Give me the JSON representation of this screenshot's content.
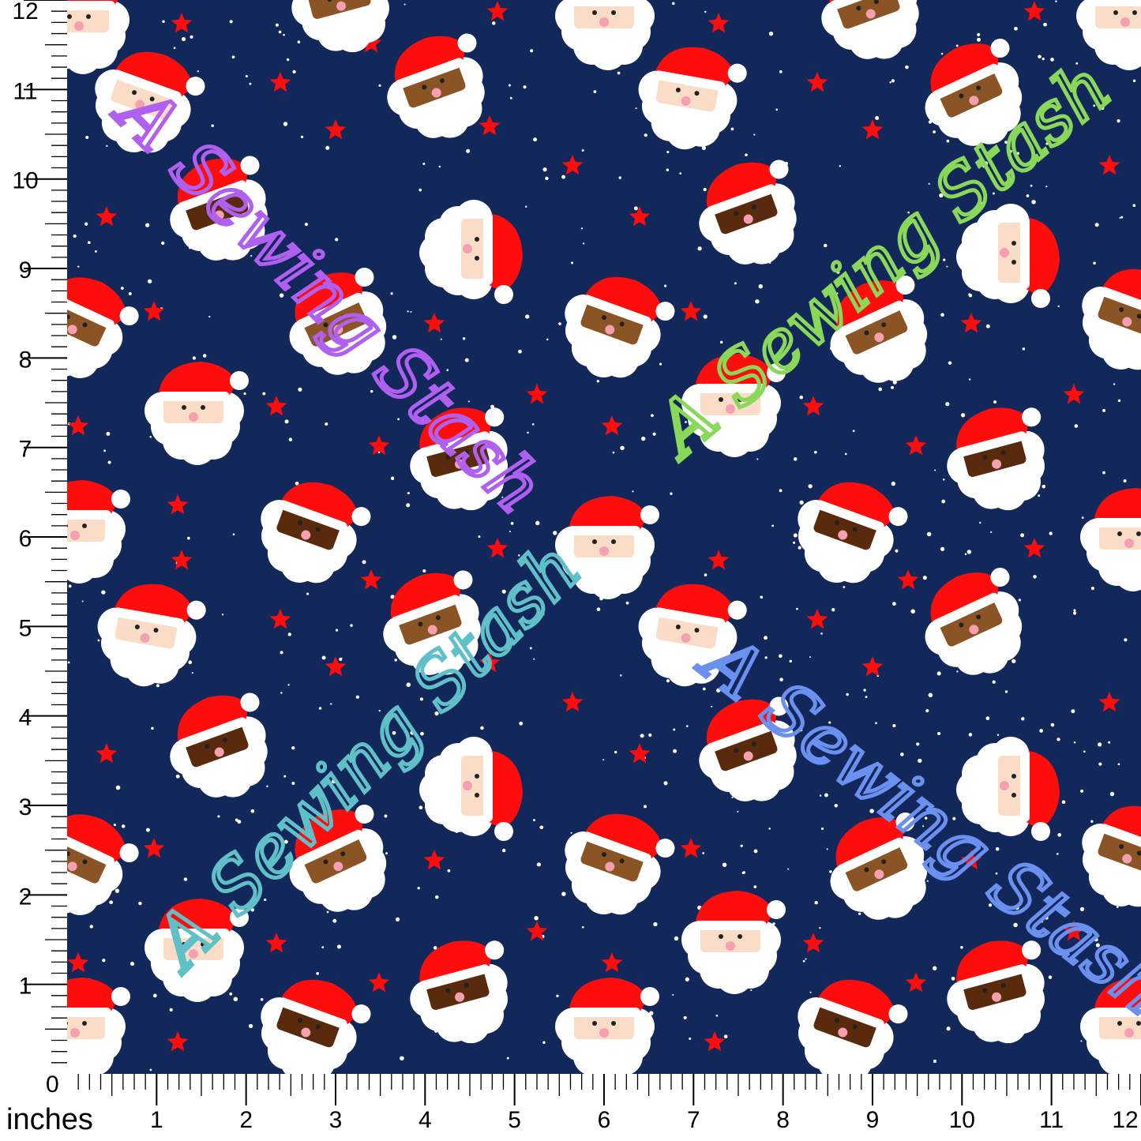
{
  "ruler": {
    "units_label": "inches",
    "x_ticks": [
      "0",
      "1",
      "2",
      "3",
      "4",
      "5",
      "6",
      "7",
      "8",
      "9",
      "10",
      "11",
      "12"
    ],
    "y_ticks": [
      "1",
      "2",
      "3",
      "4",
      "5",
      "6",
      "7",
      "8",
      "9",
      "10",
      "11",
      "12"
    ]
  },
  "fabric": {
    "motif": "Santa heads with red stars and snow dots",
    "background_color": "#13285a",
    "star_color": "#ff0d0d",
    "hat_color": "#ff0d0d"
  },
  "watermark": {
    "text": "A Sewing Stash",
    "colors": [
      "#e86ee8",
      "#b060f0",
      "#8a4ff0",
      "#5fd07a",
      "#b8e83a",
      "#60c0d0",
      "#7a8af0",
      "#4ac8f0"
    ]
  }
}
